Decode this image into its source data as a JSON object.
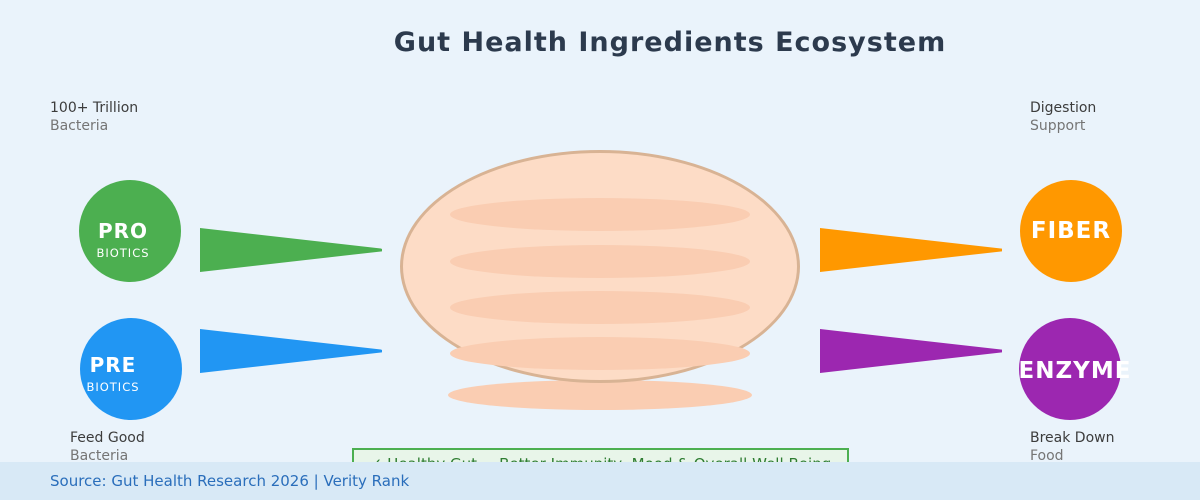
{
  "title": "Gut Health Ingredients Ecosystem",
  "annotations": {
    "top_left": {
      "line1": "100+ Trillion",
      "line2": "Bacteria"
    },
    "top_right": {
      "line1": "Digestion",
      "line2": "Support"
    },
    "bottom_left": {
      "line1": "Feed Good",
      "line2": "Bacteria"
    },
    "bottom_right": {
      "line1": "Break Down",
      "line2": "Food"
    }
  },
  "nodes": {
    "probiotics": {
      "label": "PRO",
      "sublabel": "BIOTICS",
      "color": "#4CAF50"
    },
    "prebiotics": {
      "label": "PRE",
      "sublabel": "BIOTICS",
      "color": "#2196F3"
    },
    "fiber": {
      "label": "FIBER",
      "color": "#FF9800"
    },
    "enzymes": {
      "label": "ENZYME",
      "color": "#9C27B0"
    }
  },
  "center_illustration": {
    "name": "gut-stomach-illustration",
    "fill": "#FDDCC6",
    "fold_fill": "#FACDB2",
    "border_color": "#D8B394"
  },
  "banner": {
    "text": "✓ Healthy Gut = Better Immunity, Mood & Overall Well-Being",
    "border_color": "#4CAF50",
    "background": "#E8F5E9",
    "text_color": "#2E7D32"
  },
  "footer": {
    "text": "Source: Gut Health Research 2026 | Verity Rank",
    "text_color": "#2A6EBB",
    "background": "#D8E9F6"
  },
  "palette": {
    "page_background": "#EAF3FB",
    "title_color": "#2C3A4D",
    "caption_primary": "#3C3C3C",
    "caption_secondary": "#757575"
  }
}
